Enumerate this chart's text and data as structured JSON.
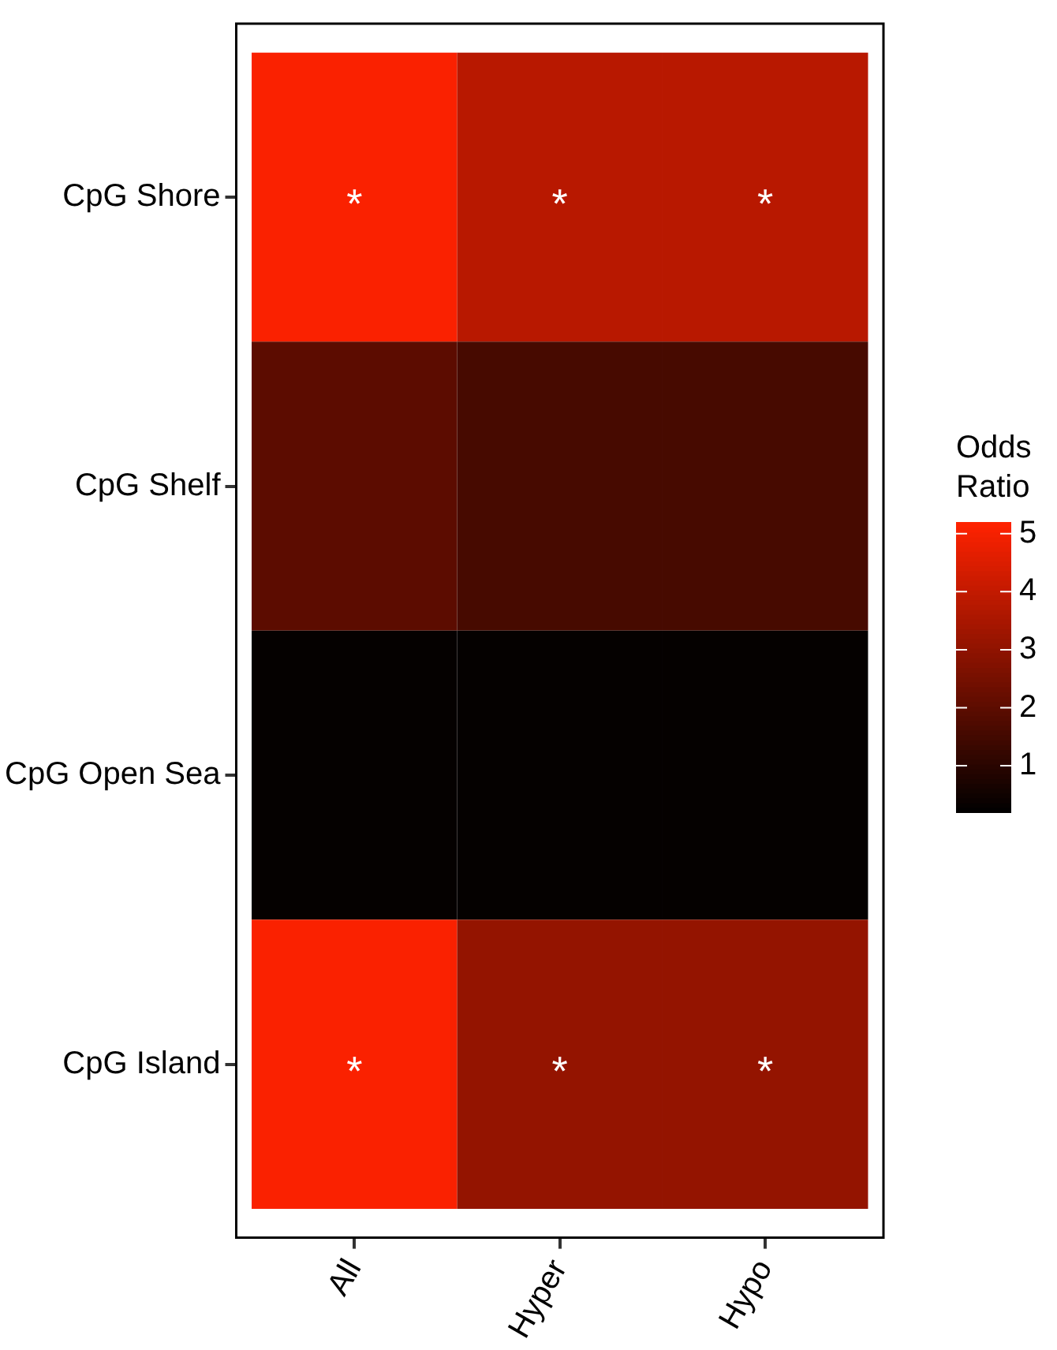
{
  "chart_data": {
    "type": "heatmap",
    "clabel": "Odds Ratio",
    "categories": [
      "All",
      "Hyper",
      "Hypo"
    ],
    "y_categories": [
      "CpG Shore",
      "CpG Shelf",
      "CpG Open Sea",
      "CpG Island"
    ],
    "cells": [
      [
        5.1,
        3.8,
        3.8
      ],
      [
        2.0,
        1.6,
        1.6
      ],
      [
        0.3,
        0.3,
        0.3
      ],
      [
        5.1,
        3.1,
        3.1
      ]
    ],
    "cell_labels": [
      [
        "*",
        "*",
        "*"
      ],
      [
        null,
        null,
        null
      ],
      [
        null,
        null,
        null
      ],
      [
        "*",
        "*",
        "*"
      ]
    ],
    "clim": [
      0.2,
      5.2
    ],
    "cticks": [
      1,
      2,
      3,
      4,
      5
    ]
  }
}
